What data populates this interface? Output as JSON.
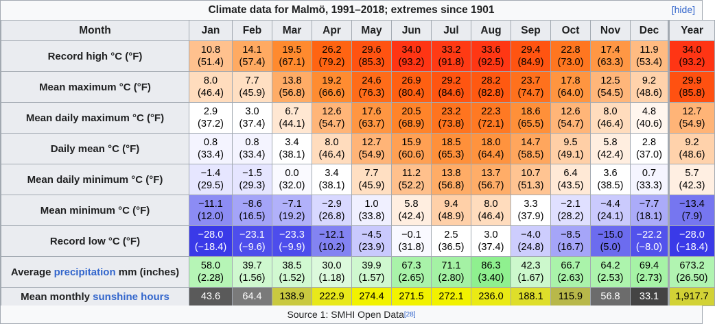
{
  "table": {
    "caption": "Climate data for Malmö, 1991–2018; extremes since 1901",
    "hide_label": "[hide]",
    "header": {
      "month_label": "Month",
      "months": [
        "Jan",
        "Feb",
        "Mar",
        "Apr",
        "May",
        "Jun",
        "Jul",
        "Aug",
        "Sep",
        "Oct",
        "Nov",
        "Dec"
      ],
      "year_label": "Year"
    },
    "rows": [
      {
        "label": "Record high °C (°F)",
        "cells": [
          {
            "m": "10.8",
            "i": "(51.4)",
            "bg": "#ffc18e",
            "fg": "#000000"
          },
          {
            "m": "14.1",
            "i": "(57.4)",
            "bg": "#ffaa62",
            "fg": "#000000"
          },
          {
            "m": "19.5",
            "i": "(67.1)",
            "bg": "#ff8a2e",
            "fg": "#000000"
          },
          {
            "m": "26.2",
            "i": "(79.2)",
            "bg": "#ff6412",
            "fg": "#000000"
          },
          {
            "m": "29.6",
            "i": "(85.3)",
            "bg": "#ff5311",
            "fg": "#000000"
          },
          {
            "m": "34.0",
            "i": "(93.2)",
            "bg": "#ff3514",
            "fg": "#000000"
          },
          {
            "m": "33.2",
            "i": "(91.8)",
            "bg": "#ff3a14",
            "fg": "#000000"
          },
          {
            "m": "33.6",
            "i": "(92.5)",
            "bg": "#ff3714",
            "fg": "#000000"
          },
          {
            "m": "29.4",
            "i": "(84.9)",
            "bg": "#ff5411",
            "fg": "#000000"
          },
          {
            "m": "22.8",
            "i": "(73.0)",
            "bg": "#ff7620",
            "fg": "#000000"
          },
          {
            "m": "17.4",
            "i": "(63.3)",
            "bg": "#ff9744",
            "fg": "#000000"
          },
          {
            "m": "11.9",
            "i": "(53.4)",
            "bg": "#ffbb82",
            "fg": "#000000"
          },
          {
            "m": "34.0",
            "i": "(93.2)",
            "bg": "#ff3514",
            "fg": "#000000"
          }
        ]
      },
      {
        "label": "Mean maximum °C (°F)",
        "cells": [
          {
            "m": "8.0",
            "i": "(46.4)",
            "bg": "#ffdcbd",
            "fg": "#000000"
          },
          {
            "m": "7.7",
            "i": "(45.9)",
            "bg": "#ffdfc2",
            "fg": "#000000"
          },
          {
            "m": "13.8",
            "i": "(56.8)",
            "bg": "#ffac66",
            "fg": "#000000"
          },
          {
            "m": "19.2",
            "i": "(66.6)",
            "bg": "#ff8c31",
            "fg": "#000000"
          },
          {
            "m": "24.6",
            "i": "(76.3)",
            "bg": "#ff6c19",
            "fg": "#000000"
          },
          {
            "m": "26.9",
            "i": "(80.4)",
            "bg": "#ff6012",
            "fg": "#000000"
          },
          {
            "m": "29.2",
            "i": "(84.6)",
            "bg": "#ff5511",
            "fg": "#000000"
          },
          {
            "m": "28.2",
            "i": "(82.8)",
            "bg": "#ff5911",
            "fg": "#000000"
          },
          {
            "m": "23.7",
            "i": "(74.7)",
            "bg": "#ff711d",
            "fg": "#000000"
          },
          {
            "m": "17.8",
            "i": "(64.0)",
            "bg": "#ff9540",
            "fg": "#000000"
          },
          {
            "m": "12.5",
            "i": "(54.5)",
            "bg": "#ffb67a",
            "fg": "#000000"
          },
          {
            "m": "9.2",
            "i": "(48.6)",
            "bg": "#ffd2ab",
            "fg": "#000000"
          },
          {
            "m": "29.9",
            "i": "(85.8)",
            "bg": "#ff5111",
            "fg": "#000000"
          }
        ]
      },
      {
        "label": "Mean daily maximum °C (°F)",
        "cells": [
          {
            "m": "2.9",
            "i": "(37.2)",
            "bg": "#ffffff",
            "fg": "#000000"
          },
          {
            "m": "3.0",
            "i": "(37.4)",
            "bg": "#ffffff",
            "fg": "#000000"
          },
          {
            "m": "6.7",
            "i": "(44.1)",
            "bg": "#ffe7d2",
            "fg": "#000000"
          },
          {
            "m": "12.6",
            "i": "(54.7)",
            "bg": "#ffb578",
            "fg": "#000000"
          },
          {
            "m": "17.6",
            "i": "(63.7)",
            "bg": "#ff9642",
            "fg": "#000000"
          },
          {
            "m": "20.5",
            "i": "(68.9)",
            "bg": "#ff842a",
            "fg": "#000000"
          },
          {
            "m": "23.2",
            "i": "(73.8)",
            "bg": "#ff741f",
            "fg": "#000000"
          },
          {
            "m": "22.3",
            "i": "(72.1)",
            "bg": "#ff7923",
            "fg": "#000000"
          },
          {
            "m": "18.6",
            "i": "(65.5)",
            "bg": "#ff9039",
            "fg": "#000000"
          },
          {
            "m": "12.6",
            "i": "(54.7)",
            "bg": "#ffb578",
            "fg": "#000000"
          },
          {
            "m": "8.0",
            "i": "(46.4)",
            "bg": "#ffdcbd",
            "fg": "#000000"
          },
          {
            "m": "4.8",
            "i": "(40.6)",
            "bg": "#fff6ee",
            "fg": "#000000"
          },
          {
            "m": "12.7",
            "i": "(54.9)",
            "bg": "#ffb477",
            "fg": "#000000"
          }
        ]
      },
      {
        "label": "Daily mean °C (°F)",
        "cells": [
          {
            "m": "0.8",
            "i": "(33.4)",
            "bg": "#f4f4ff",
            "fg": "#000000"
          },
          {
            "m": "0.8",
            "i": "(33.4)",
            "bg": "#f4f4ff",
            "fg": "#000000"
          },
          {
            "m": "3.4",
            "i": "(38.1)",
            "bg": "#ffffff",
            "fg": "#000000"
          },
          {
            "m": "8.0",
            "i": "(46.4)",
            "bg": "#ffdcbd",
            "fg": "#000000"
          },
          {
            "m": "12.7",
            "i": "(54.9)",
            "bg": "#ffb477",
            "fg": "#000000"
          },
          {
            "m": "15.9",
            "i": "(60.6)",
            "bg": "#ffa053",
            "fg": "#000000"
          },
          {
            "m": "18.5",
            "i": "(65.3)",
            "bg": "#ff903a",
            "fg": "#000000"
          },
          {
            "m": "18.0",
            "i": "(64.4)",
            "bg": "#ff933e",
            "fg": "#000000"
          },
          {
            "m": "14.7",
            "i": "(58.5)",
            "bg": "#ffa65d",
            "fg": "#000000"
          },
          {
            "m": "9.5",
            "i": "(49.1)",
            "bg": "#ffcfa6",
            "fg": "#000000"
          },
          {
            "m": "5.8",
            "i": "(42.4)",
            "bg": "#ffeee0",
            "fg": "#000000"
          },
          {
            "m": "2.8",
            "i": "(37.0)",
            "bg": "#ffffff",
            "fg": "#000000"
          },
          {
            "m": "9.2",
            "i": "(48.6)",
            "bg": "#ffd2ab",
            "fg": "#000000"
          }
        ]
      },
      {
        "label": "Mean daily minimum °C (°F)",
        "cells": [
          {
            "m": "−1.4",
            "i": "(29.5)",
            "bg": "#e6e6ff",
            "fg": "#000000"
          },
          {
            "m": "−1.5",
            "i": "(29.3)",
            "bg": "#e5e5ff",
            "fg": "#000000"
          },
          {
            "m": "0.0",
            "i": "(32.0)",
            "bg": "#fafaff",
            "fg": "#000000"
          },
          {
            "m": "3.4",
            "i": "(38.1)",
            "bg": "#ffffff",
            "fg": "#000000"
          },
          {
            "m": "7.7",
            "i": "(45.9)",
            "bg": "#ffdfc2",
            "fg": "#000000"
          },
          {
            "m": "11.2",
            "i": "(52.2)",
            "bg": "#ffc08c",
            "fg": "#000000"
          },
          {
            "m": "13.8",
            "i": "(56.8)",
            "bg": "#ffac66",
            "fg": "#000000"
          },
          {
            "m": "13.7",
            "i": "(56.7)",
            "bg": "#ffad68",
            "fg": "#000000"
          },
          {
            "m": "10.7",
            "i": "(51.3)",
            "bg": "#ffc492",
            "fg": "#000000"
          },
          {
            "m": "6.4",
            "i": "(43.5)",
            "bg": "#ffe9d6",
            "fg": "#000000"
          },
          {
            "m": "3.6",
            "i": "(38.5)",
            "bg": "#ffffff",
            "fg": "#000000"
          },
          {
            "m": "0.7",
            "i": "(33.3)",
            "bg": "#f5f5ff",
            "fg": "#000000"
          },
          {
            "m": "5.7",
            "i": "(42.3)",
            "bg": "#ffefe2",
            "fg": "#000000"
          }
        ]
      },
      {
        "label": "Mean minimum °C (°F)",
        "cells": [
          {
            "m": "−11.1",
            "i": "(12.0)",
            "bg": "#8c8cf4",
            "fg": "#000000"
          },
          {
            "m": "−8.6",
            "i": "(16.5)",
            "bg": "#a4a4f8",
            "fg": "#000000"
          },
          {
            "m": "−7.1",
            "i": "(19.2)",
            "bg": "#b1b1fa",
            "fg": "#000000"
          },
          {
            "m": "−2.9",
            "i": "(26.8)",
            "bg": "#d8d8ff",
            "fg": "#000000"
          },
          {
            "m": "1.0",
            "i": "(33.8)",
            "bg": "#f0f0ff",
            "fg": "#000000"
          },
          {
            "m": "5.8",
            "i": "(42.4)",
            "bg": "#ffeee0",
            "fg": "#000000"
          },
          {
            "m": "9.4",
            "i": "(48.9)",
            "bg": "#ffd0a8",
            "fg": "#000000"
          },
          {
            "m": "8.0",
            "i": "(46.4)",
            "bg": "#ffdcbd",
            "fg": "#000000"
          },
          {
            "m": "3.3",
            "i": "(37.9)",
            "bg": "#ffffff",
            "fg": "#000000"
          },
          {
            "m": "−2.1",
            "i": "(28.2)",
            "bg": "#e0e0ff",
            "fg": "#000000"
          },
          {
            "m": "−4.4",
            "i": "(24.1)",
            "bg": "#caCAfd",
            "fg": "#000000"
          },
          {
            "m": "−7.7",
            "i": "(18.1)",
            "bg": "#ababf9",
            "fg": "#000000"
          },
          {
            "m": "−13.4",
            "i": "(7.9)",
            "bg": "#7676f0",
            "fg": "#000000"
          }
        ]
      },
      {
        "label": "Record low °C (°F)",
        "cells": [
          {
            "m": "−28.0",
            "i": "(−18.4)",
            "bg": "#3a3ae8",
            "fg": "#ffffff"
          },
          {
            "m": "−23.1",
            "i": "(−9.6)",
            "bg": "#4e4eec",
            "fg": "#ffffff"
          },
          {
            "m": "−23.3",
            "i": "(−9.9)",
            "bg": "#4d4dec",
            "fg": "#ffffff"
          },
          {
            "m": "−12.1",
            "i": "(10.2)",
            "bg": "#8383f2",
            "fg": "#000000"
          },
          {
            "m": "−4.5",
            "i": "(23.9)",
            "bg": "#c9c9fd",
            "fg": "#000000"
          },
          {
            "m": "−0.1",
            "i": "(31.8)",
            "bg": "#f9f9ff",
            "fg": "#000000"
          },
          {
            "m": "2.5",
            "i": "(36.5)",
            "bg": "#ffffff",
            "fg": "#000000"
          },
          {
            "m": "3.0",
            "i": "(37.4)",
            "bg": "#ffffff",
            "fg": "#000000"
          },
          {
            "m": "−4.0",
            "i": "(24.8)",
            "bg": "#cdcdfd",
            "fg": "#000000"
          },
          {
            "m": "−8.5",
            "i": "(16.7)",
            "bg": "#a5a5f8",
            "fg": "#000000"
          },
          {
            "m": "−15.0",
            "i": "(5.0)",
            "bg": "#6c6cef",
            "fg": "#000000"
          },
          {
            "m": "−22.2",
            "i": "(−8.0)",
            "bg": "#5252ec",
            "fg": "#ffffff"
          },
          {
            "m": "−28.0",
            "i": "(−18.4)",
            "bg": "#3a3ae8",
            "fg": "#ffffff"
          }
        ]
      },
      {
        "label_pre": "Average ",
        "label_link": "precipitation",
        "label_post": " mm (inches)",
        "cells": [
          {
            "m": "58.0",
            "i": "(2.28)",
            "bg": "#b6f5b6",
            "fg": "#000000"
          },
          {
            "m": "39.7",
            "i": "(1.56)",
            "bg": "#cff8cf",
            "fg": "#000000"
          },
          {
            "m": "38.5",
            "i": "(1.52)",
            "bg": "#d1f9d1",
            "fg": "#000000"
          },
          {
            "m": "30.0",
            "i": "(1.18)",
            "bg": "#dcfadc",
            "fg": "#000000"
          },
          {
            "m": "39.9",
            "i": "(1.57)",
            "bg": "#cff8cf",
            "fg": "#000000"
          },
          {
            "m": "67.3",
            "i": "(2.65)",
            "bg": "#a9f3a9",
            "fg": "#000000"
          },
          {
            "m": "71.1",
            "i": "(2.80)",
            "bg": "#a4f2a4",
            "fg": "#000000"
          },
          {
            "m": "86.3",
            "i": "(3.40)",
            "bg": "#8ff08f",
            "fg": "#000000"
          },
          {
            "m": "42.3",
            "i": "(1.67)",
            "bg": "#ccf8cc",
            "fg": "#000000"
          },
          {
            "m": "66.7",
            "i": "(2.63)",
            "bg": "#aaf3aa",
            "fg": "#000000"
          },
          {
            "m": "64.2",
            "i": "(2.53)",
            "bg": "#adf4ad",
            "fg": "#000000"
          },
          {
            "m": "69.4",
            "i": "(2.73)",
            "bg": "#a6f3a6",
            "fg": "#000000"
          },
          {
            "m": "673.2",
            "i": "(26.50)",
            "bg": "#b1f4b1",
            "fg": "#000000"
          }
        ]
      },
      {
        "label_pre": "Mean monthly ",
        "label_link": "sunshine hours",
        "label_post": "",
        "cells": [
          {
            "m": "43.6",
            "bg": "#5a5a5a",
            "fg": "#ffffff"
          },
          {
            "m": "64.4",
            "bg": "#7a7a7a",
            "fg": "#ffffff"
          },
          {
            "m": "138.9",
            "bg": "#c9c940",
            "fg": "#000000"
          },
          {
            "m": "222.9",
            "bg": "#e8e81a",
            "fg": "#000000"
          },
          {
            "m": "274.4",
            "bg": "#f2f200",
            "fg": "#000000"
          },
          {
            "m": "271.5",
            "bg": "#f2f200",
            "fg": "#000000"
          },
          {
            "m": "272.1",
            "bg": "#f2f200",
            "fg": "#000000"
          },
          {
            "m": "236.0",
            "bg": "#eaea14",
            "fg": "#000000"
          },
          {
            "m": "188.1",
            "bg": "#dede2a",
            "fg": "#000000"
          },
          {
            "m": "115.9",
            "bg": "#b8b84a",
            "fg": "#000000"
          },
          {
            "m": "56.8",
            "bg": "#6c6c6c",
            "fg": "#ffffff"
          },
          {
            "m": "33.1",
            "bg": "#444444",
            "fg": "#ffffff"
          },
          {
            "m": "1,917.7",
            "bg": "#d2d236",
            "fg": "#000000"
          }
        ]
      }
    ],
    "source": {
      "text": "Source 1: SMHI Open Data",
      "ref": "[28]"
    }
  }
}
